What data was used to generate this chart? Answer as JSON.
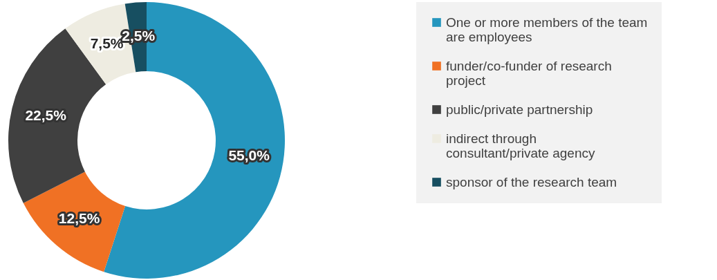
{
  "chart_data": {
    "type": "donut",
    "categories": [
      "One or more members of the team are employees",
      "funder/co-funder of research project",
      "public/private partnership",
      "indirect through consultant/private agency",
      "sponsor of the research team"
    ],
    "values": [
      55,
      12.5,
      22.5,
      7.5,
      2.5
    ],
    "colors": [
      "#2596be",
      "#f07124",
      "#404040",
      "#eeece1",
      "#174f61"
    ],
    "value_labels": [
      "55,0%",
      "12,5%",
      "22,5%",
      "7,5%",
      "2,5%"
    ],
    "legend": "right"
  }
}
